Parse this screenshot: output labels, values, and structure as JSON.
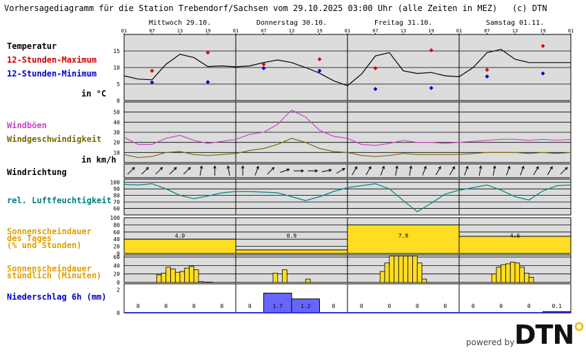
{
  "header": {
    "title": "Vorhersagediagramm für die Station Trebendorf/Sachsen vom 29.10.2025 03:00 Uhr (alle Zeiten in MEZ)",
    "copyright": "(c) DTN"
  },
  "days": [
    "Mittwoch 29.10.",
    "Donnerstag 30.10.",
    "Freitag 31.10.",
    "Samstag 01.11."
  ],
  "hour_ticks": [
    "01",
    "07",
    "13",
    "19",
    "01",
    "07",
    "13",
    "19",
    "01",
    "07",
    "13",
    "19",
    "01",
    "07",
    "13",
    "19",
    "01"
  ],
  "labels": {
    "temperature": "Temperatur",
    "max12": "12-Stunden-Maximum",
    "min12": "12-Stunden-Minimum",
    "temp_unit": "in °C",
    "gusts": "Windböen",
    "windspeed": "Windgeschwindigkeit",
    "wind_unit": "in km/h",
    "winddir": "Windrichtung",
    "humidity": "rel. Luftfeuchtigkeit",
    "sun_daily_1": "Sonnenscheindauer",
    "sun_daily_2": "des Tages",
    "sun_daily_3": "(% und Stunden)",
    "sun_hourly_1": "Sonnenscheindauer",
    "sun_hourly_2": "stündlich (Minuten)",
    "precip": "Niederschlag 6h (mm)"
  },
  "colors": {
    "panel_bg": "#dcdcdc",
    "temp_line": "#000000",
    "max_marker": "#dd0000",
    "min_marker": "#0000cc",
    "gust_line": "#cc44cc",
    "wind_line": "#7a6a00",
    "humidity_line": "#008080",
    "sun_bar": "#ffdd22",
    "precip_bar": "#6666ff",
    "label_red": "#cc0000",
    "label_blue": "#0000cc",
    "label_purple": "#cc44cc",
    "label_olive": "#7a6a00",
    "label_teal": "#008080",
    "label_orange": "#e0a000"
  },
  "chart_data": [
    {
      "type": "line",
      "name_key": "temperature",
      "x_unit": "hours since 29.10. 01:00",
      "x": [
        0,
        3,
        6,
        9,
        12,
        15,
        18,
        21,
        24,
        27,
        30,
        33,
        36,
        39,
        42,
        45,
        48,
        51,
        54,
        57,
        60,
        63,
        66,
        69,
        72,
        75,
        78,
        81,
        84,
        87,
        90,
        93,
        96
      ],
      "y": [
        7.5,
        6.5,
        6.3,
        11,
        14,
        13,
        10.3,
        10.5,
        10.2,
        10.5,
        11.5,
        12.3,
        11.5,
        10,
        8.3,
        6,
        4.5,
        8,
        13.5,
        14.5,
        9,
        8.2,
        8.5,
        7.5,
        7.2,
        10,
        14.5,
        15.5,
        12.5,
        11.5,
        11.5,
        11.5,
        11.5
      ],
      "max12": [
        {
          "x": 6,
          "y": 9
        },
        {
          "x": 18,
          "y": 14.5
        },
        {
          "x": 30,
          "y": 11
        },
        {
          "x": 42,
          "y": 12.5
        },
        {
          "x": 54,
          "y": 9.8
        },
        {
          "x": 66,
          "y": 15.2
        },
        {
          "x": 78,
          "y": 9.3
        },
        {
          "x": 90,
          "y": 16.5
        }
      ],
      "min12": [
        {
          "x": 6,
          "y": 5.5
        },
        {
          "x": 18,
          "y": 5.6
        },
        {
          "x": 30,
          "y": 9.8
        },
        {
          "x": 42,
          "y": 9
        },
        {
          "x": 54,
          "y": 3.5
        },
        {
          "x": 66,
          "y": 3.8
        },
        {
          "x": 78,
          "y": 7.3
        },
        {
          "x": 90,
          "y": 8.2
        }
      ],
      "yticks": [
        0,
        5,
        10,
        15
      ],
      "ylim": [
        0,
        20
      ]
    },
    {
      "type": "line",
      "name_key": "wind",
      "x": [
        0,
        3,
        6,
        9,
        12,
        15,
        18,
        21,
        24,
        27,
        30,
        33,
        36,
        39,
        42,
        45,
        48,
        51,
        54,
        57,
        60,
        63,
        66,
        69,
        72,
        75,
        78,
        81,
        84,
        87,
        90,
        93,
        96
      ],
      "gusts": [
        25,
        18,
        18,
        24,
        27,
        22,
        19,
        21,
        23,
        28,
        30,
        38,
        52,
        45,
        32,
        26,
        24,
        18,
        17,
        19,
        22,
        20,
        20,
        19,
        20,
        21,
        22,
        23,
        23,
        22,
        23,
        22,
        23
      ],
      "windspeed": [
        8,
        5,
        6,
        10,
        11,
        8,
        7,
        8,
        9,
        12,
        14,
        18,
        24,
        20,
        14,
        11,
        10,
        7,
        6,
        7,
        9,
        8,
        8,
        8,
        8,
        9,
        10,
        10,
        10,
        9,
        10,
        9,
        10
      ],
      "yticks": [
        10,
        20,
        30,
        40,
        50
      ],
      "ylim": [
        0,
        60
      ]
    },
    {
      "type": "table",
      "name_key": "winddir",
      "x": [
        1.5,
        4.5,
        7.5,
        10.5,
        13.5,
        16.5,
        19.5,
        22.5,
        25.5,
        28.5,
        31.5,
        34.5,
        37.5,
        40.5,
        43.5,
        46.5,
        49.5,
        52.5,
        55.5,
        58.5,
        61.5,
        64.5,
        67.5,
        70.5,
        73.5,
        76.5,
        79.5,
        82.5,
        85.5,
        88.5,
        91.5,
        94.5
      ],
      "direction_deg": [
        225,
        225,
        225,
        225,
        225,
        190,
        180,
        170,
        180,
        200,
        225,
        250,
        270,
        270,
        260,
        240,
        210,
        210,
        200,
        190,
        190,
        200,
        210,
        210,
        200,
        190,
        190,
        200,
        200,
        210,
        210,
        225
      ]
    },
    {
      "type": "line",
      "name_key": "humidity",
      "x": [
        0,
        3,
        6,
        9,
        12,
        15,
        18,
        21,
        24,
        27,
        30,
        33,
        36,
        39,
        42,
        45,
        48,
        51,
        54,
        57,
        60,
        63,
        66,
        69,
        72,
        75,
        78,
        81,
        84,
        87,
        90,
        93,
        96
      ],
      "y": [
        97,
        96,
        98,
        90,
        80,
        75,
        79,
        84,
        86,
        86,
        85,
        84,
        78,
        72,
        78,
        86,
        92,
        95,
        98,
        90,
        72,
        55,
        68,
        82,
        88,
        92,
        96,
        88,
        78,
        73,
        87,
        95,
        96
      ],
      "yticks": [
        60,
        70,
        80,
        90,
        100
      ],
      "ylim": [
        50,
        105
      ]
    },
    {
      "type": "bar",
      "name_key": "sun_daily",
      "categories": [
        "29.10.",
        "30.10.",
        "31.10.",
        "01.11."
      ],
      "percent": [
        40,
        10,
        80,
        48
      ],
      "hours_labels": [
        "4.0",
        "0.9",
        "7.9",
        "4.6"
      ],
      "yticks": [
        0,
        20,
        40,
        60,
        80,
        100
      ],
      "ylim": [
        0,
        100
      ]
    },
    {
      "type": "bar",
      "name_key": "sun_hourly",
      "x": [
        7,
        8,
        9,
        10,
        11,
        12,
        13,
        14,
        15,
        16,
        17,
        18,
        32,
        34,
        39,
        55,
        56,
        57,
        58,
        59,
        60,
        61,
        62,
        63,
        64,
        79,
        80,
        81,
        82,
        83,
        84,
        85,
        86,
        87
      ],
      "minutes": [
        18,
        22,
        36,
        32,
        24,
        26,
        34,
        38,
        30,
        2,
        1,
        1,
        22,
        30,
        8,
        26,
        46,
        62,
        62,
        62,
        62,
        62,
        62,
        46,
        8,
        20,
        36,
        42,
        44,
        48,
        46,
        36,
        22,
        12
      ],
      "yticks": [
        0,
        20,
        40,
        60
      ],
      "ylim": [
        0,
        65
      ]
    },
    {
      "type": "bar",
      "name_key": "precip",
      "periods_start_h": [
        0,
        6,
        12,
        18,
        24,
        30,
        36,
        42,
        48,
        54,
        60,
        66,
        72,
        78,
        84,
        90
      ],
      "values": [
        0,
        0,
        0,
        0,
        0,
        1.7,
        1.2,
        0,
        0,
        0,
        0,
        0,
        0,
        0,
        0,
        0.1
      ],
      "labels": [
        "0",
        "0",
        "0",
        "0",
        "0",
        "1.7",
        "1.2",
        "0",
        "0",
        "0",
        "0",
        "0",
        "0",
        "0",
        "0",
        "0.1"
      ],
      "yticks": [
        0,
        2
      ],
      "ylim": [
        0,
        2.5
      ]
    }
  ],
  "footer": {
    "powered_by": "powered by",
    "brand": "DTN"
  }
}
